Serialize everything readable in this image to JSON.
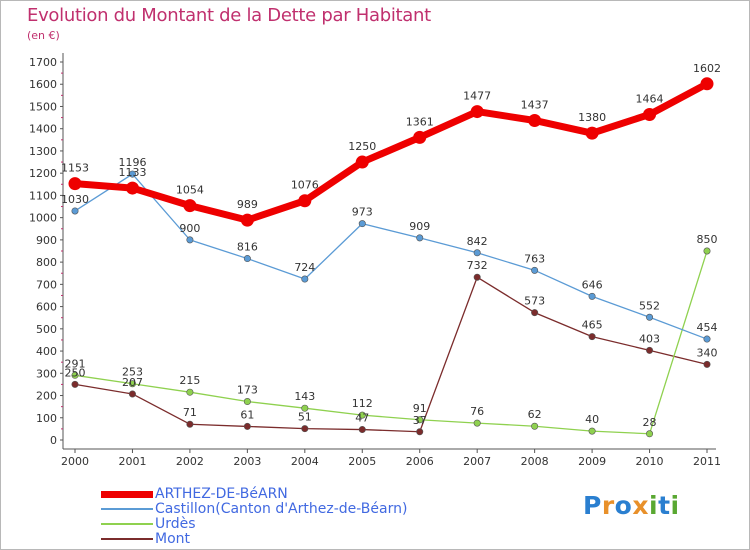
{
  "title": "Evolution du Montant de la Dette par Habitant",
  "unit_label": "(en €)",
  "logo": {
    "text": "Proxiti",
    "letters": [
      "P",
      "r",
      "o",
      "x",
      "i",
      "t",
      "i"
    ],
    "colors": [
      "#2a7fd0",
      "#e8902a",
      "#2a7fd0",
      "#e8902a",
      "#5aa832",
      "#2a7fd0",
      "#5aa832"
    ]
  },
  "chart_data": {
    "type": "line",
    "x": [
      "2000",
      "2001",
      "2002",
      "2003",
      "2004",
      "2005",
      "2006",
      "2007",
      "2008",
      "2009",
      "2010",
      "2011"
    ],
    "ylim": [
      0,
      1700
    ],
    "yticks": [
      0,
      100,
      200,
      300,
      400,
      500,
      600,
      700,
      800,
      900,
      1000,
      1100,
      1200,
      1300,
      1400,
      1500,
      1600,
      1700
    ],
    "grid": false,
    "legend_position": "bottom-left",
    "series": [
      {
        "name": "ARTHEZ-DE-BéARN",
        "color": "#ee0000",
        "values": [
          1153,
          1133,
          1054,
          989,
          1076,
          1250,
          1361,
          1477,
          1437,
          1380,
          1464,
          1602
        ],
        "labels": [
          "1153",
          "1133",
          "1054",
          "989",
          "1076",
          "1250",
          "1361",
          "1477",
          "1437",
          "1380",
          "1464",
          "1602"
        ]
      },
      {
        "name": "Castillon(Canton d'Arthez-de-Béarn)",
        "color": "#5b9bd5",
        "values": [
          1030,
          1196,
          900,
          816,
          724,
          973,
          909,
          842,
          763,
          646,
          552,
          454
        ],
        "labels": [
          "1030",
          "1196",
          "900",
          "816",
          "724",
          "973",
          "909",
          "842",
          "763",
          "646",
          "552",
          "454"
        ]
      },
      {
        "name": "Urdès",
        "color": "#8fd14f",
        "values": [
          291,
          253,
          215,
          173,
          143,
          112,
          91,
          76,
          62,
          40,
          28,
          850
        ],
        "labels": [
          "291",
          "253",
          "215",
          "173",
          "143",
          "112",
          "91",
          "76",
          "62",
          "40",
          "28",
          "850"
        ]
      },
      {
        "name": "Mont",
        "color": "#7b2c2c",
        "values": [
          250,
          207,
          71,
          61,
          51,
          47,
          37,
          732,
          573,
          465,
          403,
          340
        ],
        "labels": [
          "250",
          "207",
          "71",
          "61",
          "51",
          "47",
          "37",
          "732",
          "573",
          "465",
          "403",
          "340"
        ]
      }
    ]
  }
}
